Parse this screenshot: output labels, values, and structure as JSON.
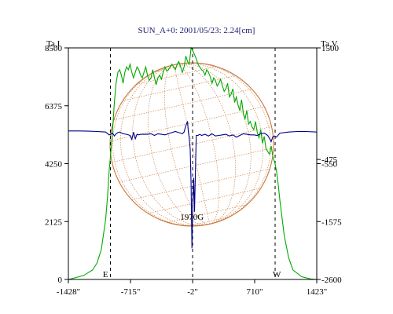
{
  "chart_data": {
    "type": "line",
    "title": "SUN_A+0: 2001/05/23: 2.24[cm]",
    "left_axis_label": "Ta,I",
    "right_axis_label": "Ta,V",
    "x_ticks": [
      {
        "value": -1428,
        "label": "-1428\""
      },
      {
        "value": -715,
        "label": "-715\""
      },
      {
        "value": -2,
        "label": "-2\""
      },
      {
        "value": 710,
        "label": "710\""
      },
      {
        "value": 1423,
        "label": "1423\""
      }
    ],
    "xlim": [
      -1428,
      1423
    ],
    "left_ylim": [
      0,
      8500
    ],
    "left_ticks": [
      0,
      2125,
      4250,
      6375,
      8500
    ],
    "right_ylim": [
      -2600,
      1500
    ],
    "right_ticks": [
      -2600,
      -1575,
      -550,
      -475,
      1500
    ],
    "right_tick_labels": [
      "-2600",
      "-1575",
      "-550",
      "-475",
      "1500"
    ],
    "markers": [
      {
        "label": "E",
        "x": -945
      },
      {
        "label": "W",
        "x": 945
      }
    ],
    "center_marker_x": -2,
    "source_label": {
      "text": "1970G",
      "x": -10,
      "y": 2100
    },
    "colors": {
      "I": "#00aa00",
      "V": "#00008b",
      "sun": "#c8763a",
      "frame": "#000000",
      "title": "#1a1a6e"
    },
    "series": [
      {
        "key": "I",
        "axis": "left",
        "x": [
          -1428,
          -1350,
          -1250,
          -1150,
          -1100,
          -1050,
          -1000,
          -980,
          -960,
          -940,
          -920,
          -900,
          -880,
          -860,
          -840,
          -820,
          -800,
          -780,
          -760,
          -740,
          -720,
          -700,
          -680,
          -660,
          -640,
          -620,
          -600,
          -580,
          -560,
          -540,
          -520,
          -500,
          -480,
          -460,
          -440,
          -420,
          -400,
          -380,
          -360,
          -340,
          -320,
          -300,
          -280,
          -260,
          -240,
          -220,
          -200,
          -180,
          -160,
          -140,
          -120,
          -100,
          -80,
          -60,
          -40,
          -20,
          0,
          20,
          40,
          60,
          80,
          100,
          120,
          140,
          160,
          180,
          200,
          220,
          240,
          260,
          280,
          300,
          320,
          340,
          360,
          380,
          400,
          420,
          440,
          460,
          480,
          500,
          520,
          540,
          560,
          580,
          600,
          620,
          640,
          660,
          680,
          700,
          720,
          740,
          760,
          780,
          800,
          820,
          840,
          860,
          880,
          900,
          920,
          940,
          960,
          980,
          1000,
          1050,
          1100,
          1150,
          1250,
          1350,
          1423
        ],
        "values": [
          0,
          60,
          150,
          350,
          600,
          1100,
          2200,
          3000,
          4000,
          4700,
          5500,
          6500,
          7200,
          7600,
          7700,
          7500,
          7200,
          7600,
          7800,
          7700,
          7900,
          7600,
          7400,
          7600,
          7800,
          7700,
          7500,
          7400,
          7600,
          7800,
          7500,
          7300,
          7400,
          7700,
          7400,
          7150,
          7400,
          7500,
          7350,
          7600,
          7800,
          7650,
          7700,
          7800,
          7900,
          7800,
          7700,
          7900,
          8000,
          7800,
          7600,
          7800,
          8200,
          8000,
          7900,
          8500,
          8400,
          8250,
          8100,
          7900,
          7800,
          7700,
          7650,
          7500,
          7700,
          7600,
          7450,
          7200,
          7400,
          7300,
          7100,
          7200,
          7350,
          7100,
          6900,
          7000,
          7200,
          6700,
          6800,
          7000,
          6500,
          6700,
          6400,
          6200,
          6600,
          6100,
          5900,
          6200,
          5700,
          5800,
          5600,
          5500,
          5800,
          5400,
          5200,
          5500,
          5000,
          5250,
          4800,
          4700,
          4600,
          4900,
          4500,
          4300,
          4000,
          3500,
          2900,
          1600,
          800,
          350,
          100,
          20,
          0
        ]
      },
      {
        "key": "V",
        "axis": "right",
        "x": [
          -1428,
          -1300,
          -1200,
          -1100,
          -1000,
          -960,
          -920,
          -900,
          -880,
          -860,
          -840,
          -800,
          -760,
          -720,
          -700,
          -680,
          -660,
          -640,
          -620,
          -600,
          -560,
          -520,
          -480,
          -440,
          -400,
          -360,
          -320,
          -280,
          -240,
          -200,
          -160,
          -120,
          -100,
          -80,
          -60,
          -50,
          -40,
          -30,
          -20,
          -10,
          0,
          10,
          20,
          30,
          40,
          60,
          80,
          100,
          140,
          180,
          220,
          260,
          300,
          340,
          380,
          420,
          460,
          500,
          540,
          580,
          620,
          660,
          700,
          740,
          780,
          820,
          860,
          880,
          900,
          920,
          940,
          960,
          1000,
          1100,
          1200,
          1300,
          1423
        ],
        "values": [
          30,
          30,
          25,
          20,
          10,
          -40,
          -10,
          -60,
          -20,
          0,
          10,
          -20,
          -30,
          -50,
          -120,
          10,
          -110,
          -30,
          -40,
          -30,
          -30,
          -30,
          -20,
          -50,
          -20,
          -30,
          -40,
          -20,
          0,
          20,
          0,
          -20,
          10,
          120,
          200,
          0,
          -100,
          -300,
          -900,
          -2050,
          -1250,
          -800,
          -1400,
          -700,
          -50,
          -50,
          -30,
          -50,
          -30,
          -60,
          -20,
          -60,
          -50,
          -40,
          -30,
          -60,
          -40,
          -80,
          -50,
          -20,
          -30,
          -40,
          -40,
          -50,
          -20,
          -10,
          -50,
          -100,
          -160,
          -70,
          -60,
          -80,
          -10,
          10,
          20,
          20,
          10
        ]
      }
    ]
  }
}
